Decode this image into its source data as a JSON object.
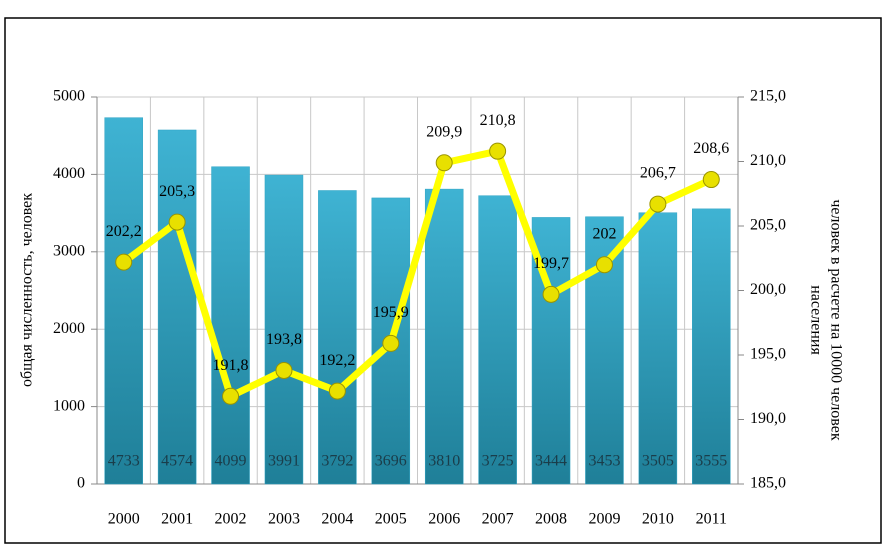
{
  "chart_data": {
    "type": "bar+line",
    "categories": [
      "2000",
      "2001",
      "2002",
      "2003",
      "2004",
      "2005",
      "2006",
      "2007",
      "2008",
      "2009",
      "2010",
      "2011"
    ],
    "series": [
      {
        "type": "bar",
        "color": "#2ea3c4",
        "axis": "y",
        "values": [
          4733,
          4574,
          4099,
          3991,
          3792,
          3696,
          3810,
          3725,
          3444,
          3453,
          3505,
          3555
        ]
      },
      {
        "type": "line",
        "color": "#ffff00",
        "axis": "y2",
        "values": [
          202.2,
          205.3,
          191.8,
          193.8,
          192.2,
          195.9,
          209.9,
          210.8,
          199.7,
          202,
          206.7,
          208.6
        ],
        "value_labels": [
          "202,2",
          "205,3",
          "191,8",
          "193,8",
          "192,2",
          "195,9",
          "209,9",
          "210,8",
          "199,7",
          "202",
          "206,7",
          "208,6"
        ]
      }
    ],
    "ylabel": "общая численность, человек",
    "y2label": [
      "человек в расчете на 10000 человек",
      "населения"
    ],
    "ylim": [
      0,
      5000
    ],
    "yticks": [
      0,
      1000,
      2000,
      3000,
      4000,
      5000
    ],
    "y2lim": [
      185,
      215
    ],
    "y2ticks": [
      {
        "value": 185,
        "label": "185,0"
      },
      {
        "value": 190,
        "label": "190,0"
      },
      {
        "value": 195,
        "label": "195,0"
      },
      {
        "value": 200,
        "label": "200,0"
      },
      {
        "value": 205,
        "label": "205,0"
      },
      {
        "value": 210,
        "label": "210,0"
      },
      {
        "value": 215,
        "label": "215,0"
      }
    ],
    "grid": true
  }
}
